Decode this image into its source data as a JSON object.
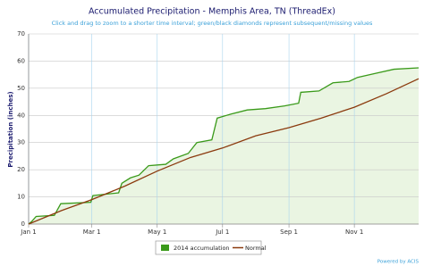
{
  "chart_data": {
    "type": "line",
    "title": "Accumulated Precipitation - Memphis Area, TN (ThreadEx)",
    "subtitle": "Click and drag to zoom to a shorter time interval; green/black diamonds represent subsequent/missing values",
    "y_label": "Precipitation (inches)",
    "credit": "Powered by ACIS",
    "xlim": [
      0,
      364
    ],
    "xticks": [
      {
        "value": 0,
        "label": "Jan 1"
      },
      {
        "value": 59,
        "label": "Mar 1"
      },
      {
        "value": 120,
        "label": "May 1"
      },
      {
        "value": 181,
        "label": "Jul 1"
      },
      {
        "value": 243,
        "label": "Sep 1"
      },
      {
        "value": 304,
        "label": "Nov 1"
      }
    ],
    "ylim": [
      0,
      70
    ],
    "yticks": [
      0,
      10,
      20,
      30,
      40,
      50,
      60,
      70
    ],
    "grid": true,
    "legend": "bottom",
    "series": [
      {
        "name": "2014 accumulation",
        "color": "#3a9a1a",
        "fill": "#eaf5e2",
        "x": [
          0,
          3,
          7,
          24,
          30,
          58,
          60,
          84,
          87,
          95,
          103,
          112,
          128,
          135,
          149,
          157,
          171,
          176,
          189,
          204,
          221,
          239,
          252,
          254,
          271,
          284,
          299,
          307,
          324,
          341,
          364
        ],
        "values": [
          0,
          1,
          2.8,
          3.2,
          7.5,
          8,
          10.5,
          11.5,
          15,
          17,
          18,
          21.5,
          22,
          24,
          26,
          30,
          31,
          39,
          40.5,
          42,
          42.5,
          43.5,
          44.5,
          48.5,
          49,
          52,
          52.5,
          54,
          55.5,
          57,
          57.5
        ]
      },
      {
        "name": "Normal",
        "color": "#8b3a0e",
        "x": [
          0,
          31,
          59,
          90,
          120,
          151,
          181,
          212,
          243,
          273,
          304,
          334,
          364
        ],
        "values": [
          0,
          5,
          9,
          14,
          19.5,
          24.5,
          28,
          32.5,
          35.5,
          39,
          43,
          48,
          53.5
        ]
      }
    ]
  }
}
